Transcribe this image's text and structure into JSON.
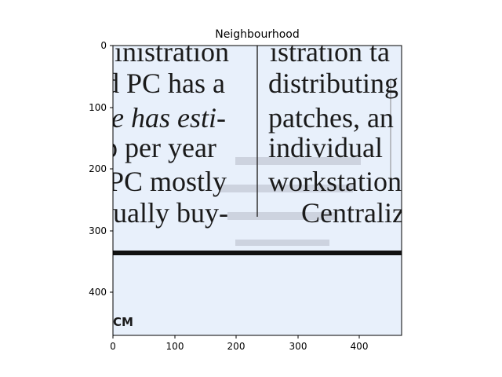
{
  "title": "Neighbourhood",
  "x_ticks": [
    "0",
    "100",
    "200",
    "300",
    "400"
  ],
  "y_ticks": [
    "0",
    "100",
    "200",
    "300",
    "400"
  ],
  "image": {
    "background": "#e8f0fb",
    "ink": "#1a1a1a",
    "left_column": [
      "inistration",
      "d PC has a",
      "e has esti-",
      "p per year",
      "PC mostly",
      "tually buy-"
    ],
    "right_column": [
      "istration ta",
      "distributing",
      "patches, an",
      "individual",
      "workstation",
      "Centraliz"
    ],
    "corner_mark": "CM"
  }
}
